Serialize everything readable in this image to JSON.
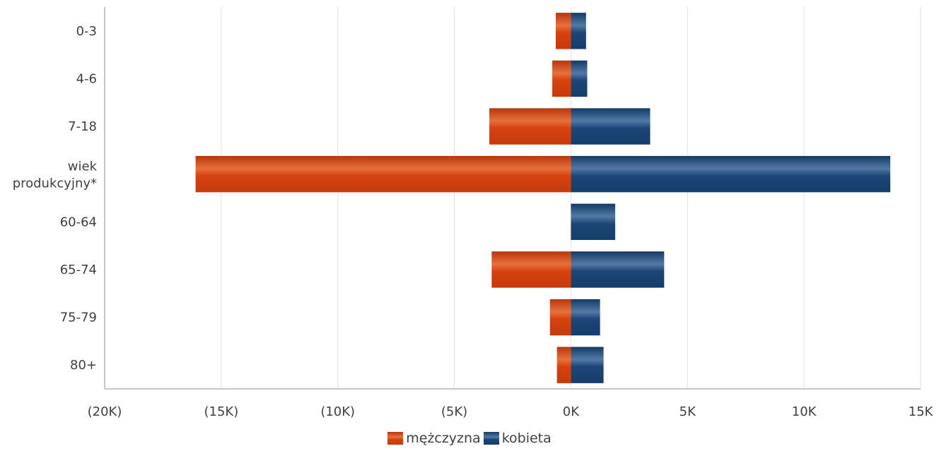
{
  "chart_data": {
    "type": "bar",
    "orientation": "horizontal",
    "stacked": "diverging",
    "categories": [
      "0-3",
      "4-6",
      "7-18",
      "wiek produkcyjny*",
      "60-64",
      "65-74",
      "75-79",
      "80+"
    ],
    "series": [
      {
        "name": "mężczyzna",
        "color": "#d5420f",
        "values": [
          -650,
          -800,
          -3500,
          -16100,
          0,
          -3400,
          -900,
          -600
        ]
      },
      {
        "name": "kobieta",
        "color": "#1c4677",
        "values": [
          650,
          700,
          3400,
          13700,
          1900,
          4000,
          1250,
          1400
        ]
      }
    ],
    "xlim": [
      -20000,
      15000
    ],
    "xticks": [
      -20000,
      -15000,
      -10000,
      -5000,
      0,
      5000,
      10000,
      15000
    ],
    "xtick_labels": [
      "(20K)",
      "(15K)",
      "(10K)",
      "(5K)",
      "0K",
      "5K",
      "10K",
      "15K"
    ],
    "grid": true,
    "legend_position": "bottom"
  }
}
